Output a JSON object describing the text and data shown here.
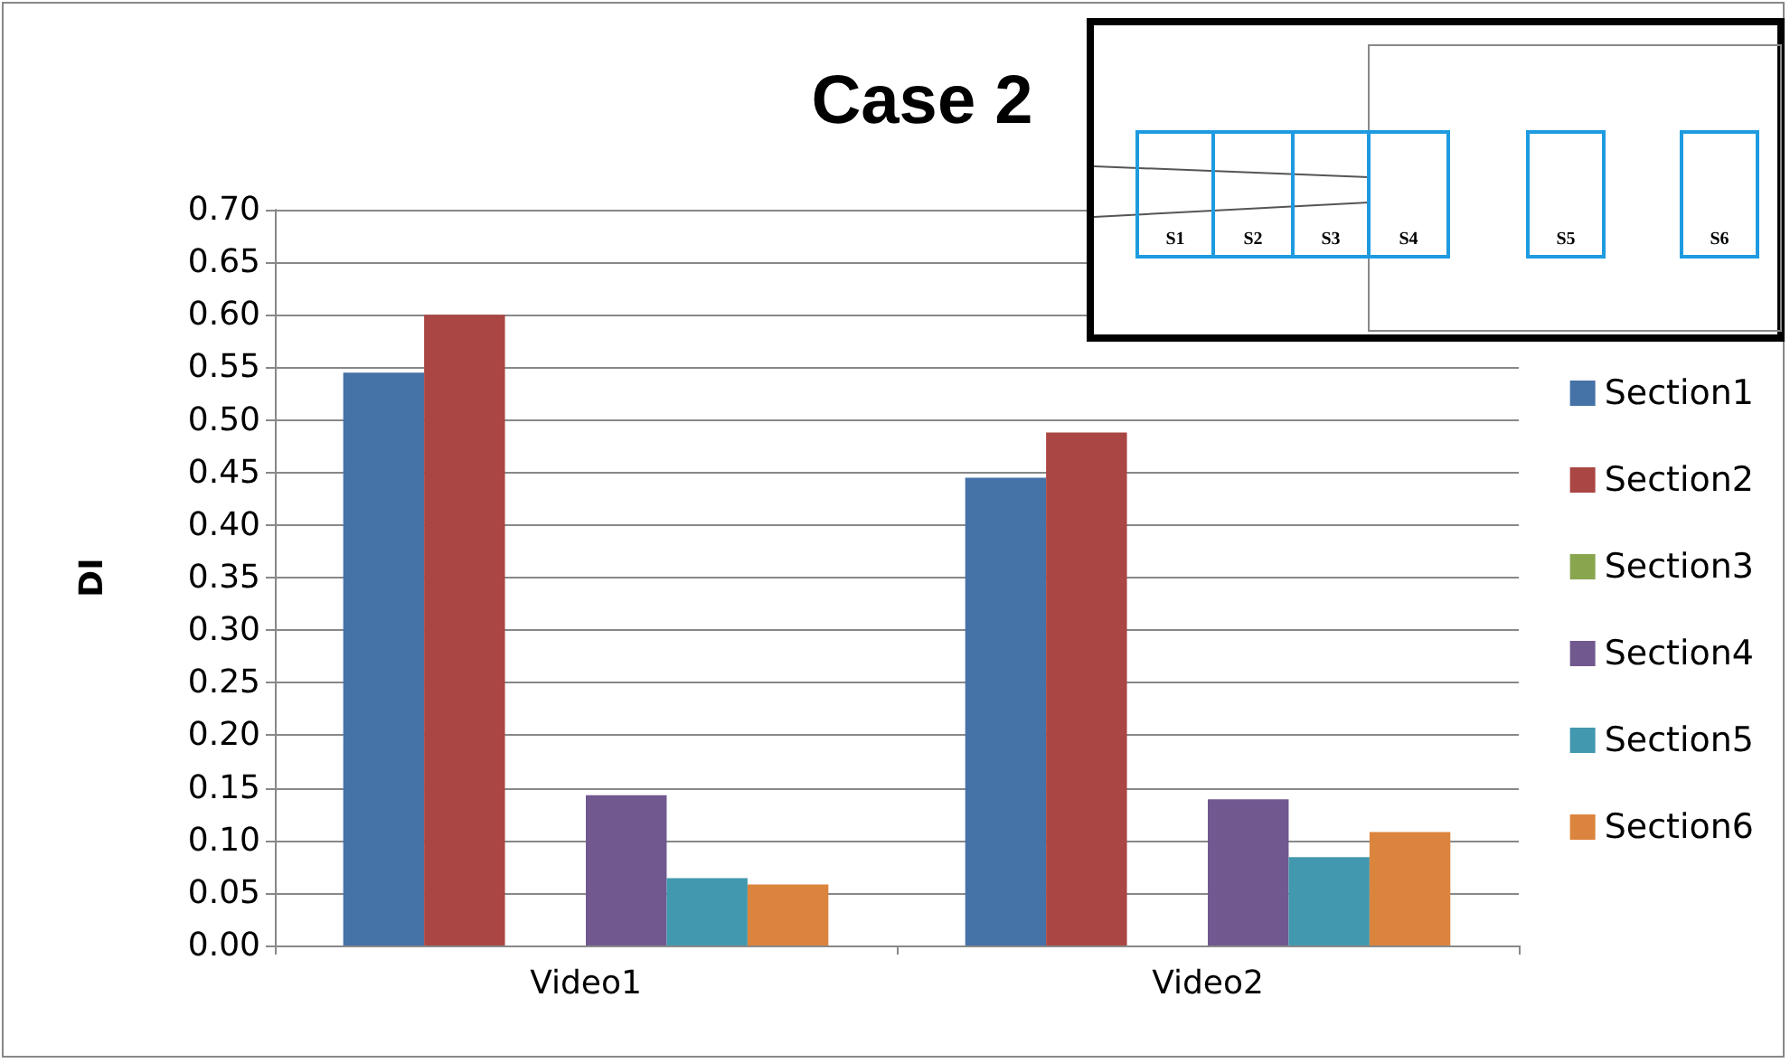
{
  "chart_data": {
    "type": "bar",
    "title": "Case 2",
    "ylabel": "DI",
    "categories": [
      "Video1",
      "Video2"
    ],
    "series": [
      {
        "name": "Section1",
        "color": "#4572a7",
        "values": [
          0.545,
          0.445
        ]
      },
      {
        "name": "Section2",
        "color": "#aa4643",
        "values": [
          0.6,
          0.488
        ]
      },
      {
        "name": "Section3",
        "color": "#89a54e",
        "values": [
          0,
          0
        ]
      },
      {
        "name": "Section4",
        "color": "#71588f",
        "values": [
          0.143,
          0.139
        ]
      },
      {
        "name": "Section5",
        "color": "#4198af",
        "values": [
          0.064,
          0.084
        ]
      },
      {
        "name": "Section6",
        "color": "#db843d",
        "values": [
          0.058,
          0.108
        ]
      }
    ],
    "ylim": [
      0,
      0.7
    ],
    "yticks": [
      {
        "value": 0,
        "label": "0.00"
      },
      0.05,
      {
        "value": 0.1,
        "label": "0.10"
      },
      0.15,
      {
        "value": 0.2,
        "label": "0.20"
      },
      0.25,
      {
        "value": 0.3,
        "label": "0.30"
      },
      0.35,
      {
        "value": 0.4,
        "label": "0.40"
      },
      0.45,
      {
        "value": 0.5,
        "label": "0.50"
      },
      0.55,
      {
        "value": 0.6,
        "label": "0.60"
      },
      0.65,
      {
        "value": 0.7,
        "label": "0.70"
      }
    ],
    "grid": "y",
    "legend": "right",
    "annotations": [
      "S1",
      "S2",
      "S3",
      "S4",
      "S5",
      "S6"
    ]
  }
}
